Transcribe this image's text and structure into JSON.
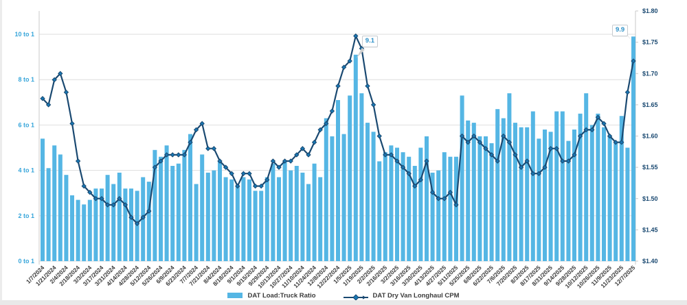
{
  "chart_data": {
    "type": "combo-bar-line",
    "title": "",
    "categories": [
      "1/7/2024",
      "1/14/2024",
      "1/21/2024",
      "1/28/2024",
      "2/4/2024",
      "2/11/2024",
      "2/18/2024",
      "2/25/2024",
      "3/3/2024",
      "3/10/2024",
      "3/17/2024",
      "3/24/2024",
      "3/31/2024",
      "4/7/2024",
      "4/14/2024",
      "4/21/2024",
      "4/28/2024",
      "5/5/2024",
      "5/12/2024",
      "5/19/2024",
      "5/26/2024",
      "6/2/2024",
      "6/9/2024",
      "6/16/2024",
      "6/23/2024",
      "6/30/2024",
      "7/7/2024",
      "7/14/2024",
      "7/21/2024",
      "7/28/2024",
      "8/4/2024",
      "8/11/2024",
      "8/18/2024",
      "8/25/2024",
      "9/1/2024",
      "9/8/2024",
      "9/15/2024",
      "9/22/2024",
      "9/29/2024",
      "10/6/2024",
      "10/13/2024",
      "10/20/2024",
      "10/27/2024",
      "11/3/2024",
      "11/10/2024",
      "11/17/2024",
      "11/24/2024",
      "12/1/2024",
      "12/8/2024",
      "12/15/2024",
      "12/22/2024",
      "12/29/2024",
      "1/5/2025",
      "1/12/2025",
      "1/19/2025",
      "1/26/2025",
      "2/2/2025",
      "2/9/2025",
      "2/16/2025",
      "2/23/2025",
      "3/2/2025",
      "3/9/2025",
      "3/16/2025",
      "3/23/2025",
      "3/30/2025",
      "4/6/2025",
      "4/13/2025",
      "4/20/2025",
      "4/27/2025",
      "5/4/2025",
      "5/11/2025",
      "5/18/2025",
      "5/25/2025",
      "6/1/2025",
      "6/8/2025",
      "6/15/2025",
      "6/22/2025",
      "6/29/2025",
      "7/6/2025",
      "7/13/2025",
      "7/20/2025",
      "7/27/2025",
      "8/3/2025",
      "8/10/2025",
      "8/17/2025",
      "8/24/2025",
      "8/31/2025",
      "9/7/2025",
      "9/14/2025",
      "9/21/2025",
      "9/28/2025",
      "10/5/2025",
      "10/12/2025",
      "10/19/2025",
      "10/26/2025",
      "11/2/2025",
      "11/9/2025",
      "11/16/2025",
      "11/23/2025",
      "11/30/2025",
      "12/7/2025"
    ],
    "x_tick_step": 2,
    "series": [
      {
        "name": "DAT Load:Truck Ratio",
        "type": "bar",
        "axis": "left",
        "color": "#55b6e4",
        "values": [
          5.4,
          4.1,
          5.1,
          4.7,
          3.8,
          2.9,
          2.7,
          2.5,
          2.7,
          3.2,
          3.2,
          3.8,
          3.4,
          3.9,
          3.2,
          3.2,
          3.1,
          3.7,
          3.5,
          4.9,
          4.6,
          5.1,
          4.2,
          4.3,
          4.9,
          5.6,
          3.4,
          4.7,
          3.9,
          4.0,
          4.4,
          3.7,
          3.6,
          3.3,
          3.7,
          3.6,
          3.1,
          3.1,
          3.7,
          4.3,
          3.7,
          4.4,
          4.0,
          4.2,
          3.9,
          3.4,
          4.3,
          3.7,
          6.3,
          5.5,
          7.1,
          5.6,
          7.3,
          9.1,
          7.4,
          6.1,
          5.7,
          4.4,
          4.8,
          5.1,
          5.0,
          4.8,
          4.6,
          4.2,
          5.0,
          5.5,
          3.9,
          4.0,
          4.8,
          4.6,
          4.6,
          7.3,
          6.2,
          6.1,
          5.5,
          5.5,
          5.2,
          6.7,
          6.3,
          7.4,
          6.1,
          5.9,
          5.9,
          6.6,
          5.4,
          5.8,
          5.7,
          6.6,
          6.6,
          5.3,
          5.8,
          6.5,
          7.4,
          6.0,
          6.5,
          5.9,
          5.5,
          5.2,
          6.4,
          5.0,
          9.9
        ]
      },
      {
        "name": "DAT Dry Van Longhaul CPM",
        "type": "line",
        "axis": "right",
        "color": "#1a4971",
        "marker_color": "#1878b4",
        "values": [
          1.66,
          1.65,
          1.69,
          1.7,
          1.67,
          1.62,
          1.56,
          1.52,
          1.51,
          1.5,
          1.5,
          1.49,
          1.49,
          1.5,
          1.49,
          1.47,
          1.46,
          1.47,
          1.48,
          1.55,
          1.56,
          1.57,
          1.57,
          1.57,
          1.57,
          1.59,
          1.61,
          1.62,
          1.58,
          1.58,
          1.56,
          1.55,
          1.54,
          1.52,
          1.54,
          1.54,
          1.52,
          1.52,
          1.53,
          1.56,
          1.55,
          1.56,
          1.56,
          1.57,
          1.58,
          1.57,
          1.59,
          1.61,
          1.62,
          1.64,
          1.68,
          1.71,
          1.72,
          1.76,
          1.74,
          1.68,
          1.65,
          1.6,
          1.57,
          1.57,
          1.56,
          1.55,
          1.54,
          1.52,
          1.53,
          1.56,
          1.51,
          1.5,
          1.5,
          1.51,
          1.49,
          1.6,
          1.59,
          1.6,
          1.59,
          1.58,
          1.57,
          1.56,
          1.6,
          1.59,
          1.57,
          1.55,
          1.56,
          1.54,
          1.54,
          1.55,
          1.58,
          1.58,
          1.56,
          1.56,
          1.57,
          1.6,
          1.61,
          1.61,
          1.63,
          1.62,
          1.6,
          1.59,
          1.59,
          1.67,
          1.72
        ]
      }
    ],
    "left_axis": {
      "labels": [
        "0 to 1",
        "2 to 1",
        "4 to 1",
        "6 to 1",
        "8 to 1",
        "10 to 1"
      ],
      "values": [
        0,
        2,
        4,
        6,
        8,
        10
      ],
      "min": 0,
      "max": 10,
      "label_color": "#36a5da"
    },
    "right_axis": {
      "labels": [
        "$1.40",
        "$1.45",
        "$1.50",
        "$1.55",
        "$1.60",
        "$1.65",
        "$1.70",
        "$1.75",
        "$1.80"
      ],
      "values": [
        1.4,
        1.45,
        1.5,
        1.55,
        1.6,
        1.65,
        1.7,
        1.75,
        1.8
      ],
      "min": 1.4,
      "max": 1.8,
      "label_color": "#1a4971"
    },
    "grid_color": "#dedede",
    "axis_line_color": "#c9c9c9",
    "x_label_color": "#3c3c3c",
    "legend_position": "bottom-center",
    "annotations": [
      {
        "index": 53,
        "text": "9.1",
        "side": "right"
      },
      {
        "index": 100,
        "text": "9.9",
        "side": "left"
      }
    ]
  }
}
